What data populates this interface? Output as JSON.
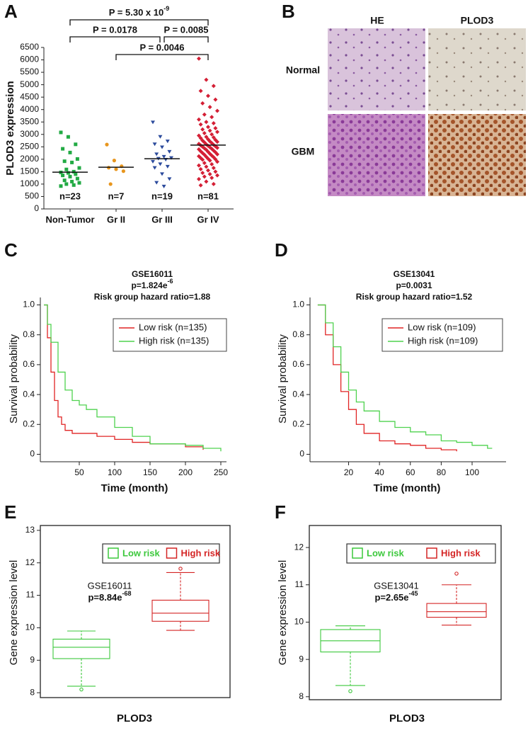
{
  "panel_b": {
    "letter": "B",
    "columns": [
      "HE",
      "PLOD3"
    ],
    "rows": [
      "Normal",
      "GBM"
    ]
  },
  "chart_data": [
    {
      "type": "dot",
      "letter": "A",
      "ylabel": "PLOD3 expression",
      "categories": [
        "Non-Tumor",
        "Gr II",
        "Gr III",
        "Gr IV"
      ],
      "n_labels": [
        "n=23",
        "n=7",
        "n=19",
        "n=81"
      ],
      "colors": [
        "#22aa44",
        "#e8961e",
        "#2b4a9c",
        "#d41f35"
      ],
      "markers": [
        "square",
        "circle",
        "triangle-down",
        "diamond"
      ],
      "points": [
        [
          3080,
          2900,
          2600,
          2420,
          2270,
          2010,
          1920,
          1870,
          1650,
          1590,
          1500,
          1470,
          1450,
          1400,
          1350,
          1300,
          1220,
          1150,
          1100,
          1050,
          1000,
          960,
          920
        ],
        [
          2590,
          1950,
          1720,
          1660,
          1600,
          1520,
          1000
        ],
        [
          3480,
          2900,
          2720,
          2600,
          2480,
          2300,
          2200,
          2100,
          2050,
          2020,
          1980,
          1900,
          1800,
          1700,
          1650,
          1400,
          1200,
          1050,
          900
        ],
        [
          6050,
          5200,
          4950,
          4750,
          4550,
          4400,
          4250,
          4100,
          3950,
          3800,
          3700,
          3600,
          3500,
          3450,
          3400,
          3300,
          3250,
          3200,
          3150,
          3100,
          3050,
          3000,
          2950,
          2900,
          2880,
          2850,
          2800,
          2780,
          2750,
          2720,
          2700,
          2680,
          2650,
          2620,
          2600,
          2580,
          2560,
          2540,
          2520,
          2500,
          2480,
          2460,
          2440,
          2420,
          2400,
          2380,
          2350,
          2320,
          2300,
          2280,
          2250,
          2220,
          2200,
          2180,
          2150,
          2120,
          2100,
          2080,
          2050,
          2020,
          2000,
          1980,
          1950,
          1900,
          1850,
          1800,
          1750,
          1700,
          1650,
          1600,
          1550,
          1500,
          1450,
          1400,
          1350,
          1300,
          1250,
          1200,
          1100,
          1000,
          950
        ]
      ],
      "medians": [
        1480,
        1680,
        2020,
        2570
      ],
      "ylim": [
        0,
        6500
      ],
      "yticks": [
        0,
        500,
        1000,
        1500,
        2000,
        2500,
        3000,
        3500,
        4000,
        4500,
        5000,
        5500,
        6000,
        6500
      ],
      "brackets": [
        {
          "groups": [
            0,
            3
          ],
          "label": {
            "base": "P = 5.30 x 10",
            "exponent": "-9"
          }
        },
        {
          "groups": [
            0,
            2
          ],
          "label": "P = 0.0178"
        },
        {
          "groups": [
            2,
            3
          ],
          "label": "P = 0.0085"
        },
        {
          "groups": [
            1,
            3
          ],
          "label": "P = 0.0046"
        }
      ]
    },
    {
      "type": "survival",
      "letter": "C",
      "dataset": "GSE16011",
      "p_value": {
        "base": "p=1.824e",
        "exponent": "-6"
      },
      "hazard": "Risk group hazard ratio=1.88",
      "xlabel": "Time (month)",
      "ylabel": "Survival probability",
      "xlim": [
        -5,
        258
      ],
      "xticks": [
        50,
        100,
        150,
        200,
        250
      ],
      "ylim": [
        -0.05,
        1.05
      ],
      "yticks": [
        0,
        0.2,
        0.4,
        0.6,
        0.8,
        {
          "value": 1,
          "label": "1.0"
        }
      ],
      "series": [
        {
          "name": "Low risk (n=135)",
          "color": "#e02424",
          "x": [
            0,
            5,
            10,
            15,
            20,
            25,
            30,
            40,
            50,
            75,
            100,
            125,
            150,
            175,
            200,
            225
          ],
          "values": [
            1.0,
            0.78,
            0.55,
            0.36,
            0.25,
            0.2,
            0.16,
            0.14,
            0.14,
            0.12,
            0.1,
            0.08,
            0.07,
            0.07,
            0.05,
            0.03
          ]
        },
        {
          "name": "High risk (n=135)",
          "color": "#4fd24f",
          "x": [
            0,
            5,
            10,
            20,
            30,
            40,
            50,
            60,
            75,
            100,
            125,
            150,
            175,
            200,
            225,
            250
          ],
          "values": [
            1.0,
            0.87,
            0.75,
            0.55,
            0.43,
            0.36,
            0.33,
            0.3,
            0.25,
            0.18,
            0.12,
            0.07,
            0.07,
            0.06,
            0.04,
            0.02
          ]
        }
      ]
    },
    {
      "type": "survival",
      "letter": "D",
      "dataset": "GSE13041",
      "p_value": "p=0.0031",
      "hazard": "Risk group hazard ratio=1.52",
      "xlabel": "Time (month)",
      "ylabel": "Survival probability",
      "xlim": [
        -5,
        122
      ],
      "xticks": [
        20,
        40,
        60,
        80,
        100
      ],
      "ylim": [
        -0.05,
        1.05
      ],
      "yticks": [
        0,
        0.2,
        0.4,
        0.6,
        0.8,
        {
          "value": 1,
          "label": "1.0"
        }
      ],
      "series": [
        {
          "name": "Low risk (n=109)",
          "color": "#e02424",
          "x": [
            0,
            5,
            10,
            15,
            20,
            25,
            30,
            40,
            50,
            60,
            70,
            80,
            90
          ],
          "values": [
            1.0,
            0.8,
            0.6,
            0.42,
            0.3,
            0.2,
            0.14,
            0.09,
            0.07,
            0.06,
            0.04,
            0.03,
            0.02
          ]
        },
        {
          "name": "High risk (n=109)",
          "color": "#4fd24f",
          "x": [
            0,
            5,
            10,
            15,
            20,
            25,
            30,
            40,
            50,
            60,
            70,
            80,
            90,
            100,
            110,
            113
          ],
          "values": [
            1.0,
            0.88,
            0.72,
            0.55,
            0.43,
            0.35,
            0.29,
            0.22,
            0.18,
            0.15,
            0.13,
            0.09,
            0.08,
            0.06,
            0.04,
            0.04
          ]
        }
      ]
    },
    {
      "type": "box",
      "letter": "E",
      "dataset": "GSE16011",
      "p_value": {
        "base": "p=8.84e",
        "exponent": "-68"
      },
      "xlabel": "PLOD3",
      "ylabel": "Gene expression level",
      "ylim": [
        7.85,
        13.15
      ],
      "yticks": [
        8,
        9,
        10,
        11,
        12,
        13
      ],
      "series": [
        {
          "name": "Low risk",
          "color": "#3cc83c",
          "whislo": 8.2,
          "q1": 9.05,
          "median": 9.4,
          "q3": 9.65,
          "whishi": 9.9,
          "fliers": [
            8.1
          ]
        },
        {
          "name": "High risk",
          "color": "#d42424",
          "whislo": 9.92,
          "q1": 10.2,
          "median": 10.45,
          "q3": 10.85,
          "whishi": 11.7,
          "fliers": [
            11.82
          ]
        }
      ]
    },
    {
      "type": "box",
      "letter": "F",
      "dataset": "GSE13041",
      "p_value": {
        "base": "p=2.65e",
        "exponent": "-45"
      },
      "xlabel": "PLOD3",
      "ylabel": "Gene expression level",
      "ylim": [
        7.92,
        12.59
      ],
      "yticks": [
        8,
        9,
        10,
        11,
        12
      ],
      "series": [
        {
          "name": "Low risk",
          "color": "#3cc83c",
          "whislo": 8.3,
          "q1": 9.2,
          "median": 9.5,
          "q3": 9.8,
          "whishi": 9.9,
          "fliers": [
            8.15
          ]
        },
        {
          "name": "High risk",
          "color": "#d42424",
          "whislo": 9.92,
          "q1": 10.13,
          "median": 10.28,
          "q3": 10.5,
          "whishi": 11.0,
          "fliers": [
            11.3
          ]
        }
      ]
    }
  ]
}
